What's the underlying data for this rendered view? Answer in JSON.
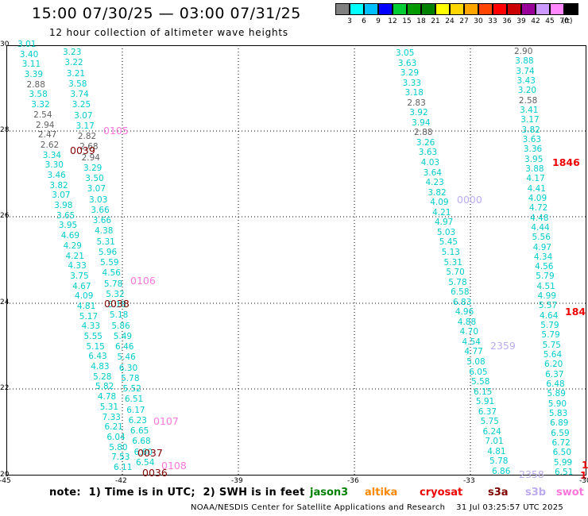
{
  "title": "15:00 07/30/25 — 03:00 07/31/25",
  "subtitle": "12 hour collection of altimeter wave heights",
  "scale": {
    "unit": "(ft)",
    "bins": [
      {
        "label": "3",
        "color": "#808080"
      },
      {
        "label": "6",
        "color": "#00ffff"
      },
      {
        "label": "9",
        "color": "#00bfff"
      },
      {
        "label": "12",
        "color": "#0000ff"
      },
      {
        "label": "15",
        "color": "#00cc33"
      },
      {
        "label": "18",
        "color": "#009900"
      },
      {
        "label": "21",
        "color": "#008000"
      },
      {
        "label": "24",
        "color": "#ffff00"
      },
      {
        "label": "27",
        "color": "#ffd700"
      },
      {
        "label": "30",
        "color": "#ffa500"
      },
      {
        "label": "33",
        "color": "#ff4500"
      },
      {
        "label": "36",
        "color": "#ff0000"
      },
      {
        "label": "39",
        "color": "#cc0000"
      },
      {
        "label": "42",
        "color": "#990099"
      },
      {
        "label": "45",
        "color": "#cc99ff"
      },
      {
        "label": "70",
        "color": "#ff88ff"
      },
      {
        "label": "",
        "color": "#000000"
      }
    ]
  },
  "axes": {
    "lon": [
      "-45",
      "-42",
      "-39",
      "-36",
      "-33",
      "-30"
    ],
    "lat": [
      "30",
      "28",
      "26",
      "24",
      "22",
      "20"
    ]
  },
  "colors": {
    "cyan": "#00cccc",
    "gray": "#606060",
    "pink": "#ff77dd",
    "maroon": "#800000",
    "red": "#ee0000",
    "lavender": "#bbaaee"
  },
  "track_a": [
    {
      "v": "3.01",
      "c": "cyan"
    },
    {
      "v": "3.40",
      "c": "cyan"
    },
    {
      "v": "3.11",
      "c": "cyan"
    },
    {
      "v": "3.39",
      "c": "cyan"
    },
    {
      "v": "2.88",
      "c": "gray"
    },
    {
      "v": "3.58",
      "c": "cyan"
    },
    {
      "v": "3.32",
      "c": "cyan"
    },
    {
      "v": "2.54",
      "c": "gray"
    },
    {
      "v": "2.94",
      "c": "gray"
    },
    {
      "v": "2.47",
      "c": "gray"
    },
    {
      "v": "2.62",
      "c": "gray"
    },
    {
      "v": "3.34",
      "c": "cyan"
    },
    {
      "v": "3.30",
      "c": "cyan"
    },
    {
      "v": "3.46",
      "c": "cyan"
    },
    {
      "v": "3.82",
      "c": "cyan"
    },
    {
      "v": "3.07",
      "c": "cyan"
    },
    {
      "v": "3.98",
      "c": "cyan"
    },
    {
      "v": "3.65",
      "c": "cyan"
    },
    {
      "v": "3.95",
      "c": "cyan"
    },
    {
      "v": "4.69",
      "c": "cyan"
    },
    {
      "v": "4.29",
      "c": "cyan"
    },
    {
      "v": "4.21",
      "c": "cyan"
    },
    {
      "v": "4.33",
      "c": "cyan"
    },
    {
      "v": "3.75",
      "c": "cyan"
    },
    {
      "v": "4.67",
      "c": "cyan"
    },
    {
      "v": "4.09",
      "c": "cyan"
    },
    {
      "v": "4.81",
      "c": "cyan"
    },
    {
      "v": "5.17",
      "c": "cyan"
    },
    {
      "v": "4.33",
      "c": "cyan"
    },
    {
      "v": "5.55",
      "c": "cyan"
    },
    {
      "v": "5.15",
      "c": "cyan"
    },
    {
      "v": "6.43",
      "c": "cyan"
    },
    {
      "v": "4.83",
      "c": "cyan"
    },
    {
      "v": "5.28",
      "c": "cyan"
    },
    {
      "v": "5.82",
      "c": "cyan"
    },
    {
      "v": "4.78",
      "c": "cyan"
    },
    {
      "v": "5.31",
      "c": "cyan"
    },
    {
      "v": "7.33",
      "c": "cyan"
    },
    {
      "v": "6.21",
      "c": "cyan"
    },
    {
      "v": "6.04",
      "c": "cyan"
    },
    {
      "v": "5.80",
      "c": "cyan"
    },
    {
      "v": "7.53",
      "c": "cyan"
    },
    {
      "v": "6.11",
      "c": "cyan"
    }
  ],
  "track_b": [
    {
      "v": "3.23",
      "c": "cyan"
    },
    {
      "v": "3.22",
      "c": "cyan"
    },
    {
      "v": "3.21",
      "c": "cyan"
    },
    {
      "v": "3.58",
      "c": "cyan"
    },
    {
      "v": "3.74",
      "c": "cyan"
    },
    {
      "v": "3.25",
      "c": "cyan"
    },
    {
      "v": "3.07",
      "c": "cyan"
    },
    {
      "v": "3.17",
      "c": "cyan"
    },
    {
      "v": "2.82",
      "c": "gray"
    },
    {
      "v": "2.68",
      "c": "gray"
    },
    {
      "v": "2.94",
      "c": "gray"
    },
    {
      "v": "3.29",
      "c": "cyan"
    },
    {
      "v": "3.50",
      "c": "cyan"
    },
    {
      "v": "3.07",
      "c": "cyan"
    },
    {
      "v": "3.03",
      "c": "cyan"
    },
    {
      "v": "3.66",
      "c": "cyan"
    },
    {
      "v": "3.66",
      "c": "cyan"
    },
    {
      "v": "4.38",
      "c": "cyan"
    },
    {
      "v": "5.31",
      "c": "cyan"
    },
    {
      "v": "5.96",
      "c": "cyan"
    },
    {
      "v": "5.59",
      "c": "cyan"
    },
    {
      "v": "4.56",
      "c": "cyan"
    },
    {
      "v": "5.78",
      "c": "cyan"
    },
    {
      "v": "5.32",
      "c": "cyan"
    },
    {
      "v": "5.18",
      "c": "cyan"
    },
    {
      "v": "5.18",
      "c": "cyan"
    },
    {
      "v": "5.86",
      "c": "cyan"
    },
    {
      "v": "5.49",
      "c": "cyan"
    },
    {
      "v": "6.46",
      "c": "cyan"
    },
    {
      "v": "5.46",
      "c": "cyan"
    },
    {
      "v": "6.30",
      "c": "cyan"
    },
    {
      "v": "5.78",
      "c": "cyan"
    },
    {
      "v": "5.52",
      "c": "cyan"
    },
    {
      "v": "6.51",
      "c": "cyan"
    },
    {
      "v": "6.17",
      "c": "cyan"
    },
    {
      "v": "6.23",
      "c": "cyan"
    },
    {
      "v": "6.65",
      "c": "cyan"
    },
    {
      "v": "6.68",
      "c": "cyan"
    },
    {
      "v": "6.60",
      "c": "cyan"
    },
    {
      "v": "6.54",
      "c": "cyan"
    }
  ],
  "track_c": [
    {
      "v": "3.05",
      "c": "cyan"
    },
    {
      "v": "3.63",
      "c": "cyan"
    },
    {
      "v": "3.29",
      "c": "cyan"
    },
    {
      "v": "3.33",
      "c": "cyan"
    },
    {
      "v": "3.18",
      "c": "cyan"
    },
    {
      "v": "2.83",
      "c": "gray"
    },
    {
      "v": "3.92",
      "c": "cyan"
    },
    {
      "v": "3.94",
      "c": "cyan"
    },
    {
      "v": "2.88",
      "c": "gray"
    },
    {
      "v": "3.26",
      "c": "cyan"
    },
    {
      "v": "3.63",
      "c": "cyan"
    },
    {
      "v": "4.03",
      "c": "cyan"
    },
    {
      "v": "3.64",
      "c": "cyan"
    },
    {
      "v": "4.23",
      "c": "cyan"
    },
    {
      "v": "3.82",
      "c": "cyan"
    },
    {
      "v": "4.09",
      "c": "cyan"
    },
    {
      "v": "4.21",
      "c": "cyan"
    },
    {
      "v": "4.97",
      "c": "cyan"
    },
    {
      "v": "5.03",
      "c": "cyan"
    },
    {
      "v": "5.45",
      "c": "cyan"
    },
    {
      "v": "5.13",
      "c": "cyan"
    },
    {
      "v": "5.31",
      "c": "cyan"
    },
    {
      "v": "5.70",
      "c": "cyan"
    },
    {
      "v": "5.78",
      "c": "cyan"
    },
    {
      "v": "6.58",
      "c": "cyan"
    },
    {
      "v": "6.83",
      "c": "cyan"
    },
    {
      "v": "4.96",
      "c": "cyan"
    },
    {
      "v": "4.88",
      "c": "cyan"
    },
    {
      "v": "4.70",
      "c": "cyan"
    },
    {
      "v": "4.54",
      "c": "cyan"
    },
    {
      "v": "4.77",
      "c": "cyan"
    },
    {
      "v": "5.08",
      "c": "cyan"
    },
    {
      "v": "6.05",
      "c": "cyan"
    },
    {
      "v": "5.58",
      "c": "cyan"
    },
    {
      "v": "6.15",
      "c": "cyan"
    },
    {
      "v": "5.91",
      "c": "cyan"
    },
    {
      "v": "6.37",
      "c": "cyan"
    },
    {
      "v": "5.75",
      "c": "cyan"
    },
    {
      "v": "6.24",
      "c": "cyan"
    },
    {
      "v": "7.01",
      "c": "cyan"
    },
    {
      "v": "4.81",
      "c": "cyan"
    },
    {
      "v": "5.78",
      "c": "cyan"
    },
    {
      "v": "6.86",
      "c": "cyan"
    }
  ],
  "track_d": [
    {
      "v": "2.90",
      "c": "gray"
    },
    {
      "v": "3.88",
      "c": "cyan"
    },
    {
      "v": "3.74",
      "c": "cyan"
    },
    {
      "v": "3.43",
      "c": "cyan"
    },
    {
      "v": "3.20",
      "c": "cyan"
    },
    {
      "v": "2.58",
      "c": "gray"
    },
    {
      "v": "3.41",
      "c": "cyan"
    },
    {
      "v": "3.17",
      "c": "cyan"
    },
    {
      "v": "3.82",
      "c": "cyan"
    },
    {
      "v": "3.63",
      "c": "cyan"
    },
    {
      "v": "3.36",
      "c": "cyan"
    },
    {
      "v": "3.95",
      "c": "cyan"
    },
    {
      "v": "3.88",
      "c": "cyan"
    },
    {
      "v": "4.17",
      "c": "cyan"
    },
    {
      "v": "4.41",
      "c": "cyan"
    },
    {
      "v": "4.09",
      "c": "cyan"
    },
    {
      "v": "4.72",
      "c": "cyan"
    },
    {
      "v": "4.48",
      "c": "cyan"
    },
    {
      "v": "4.44",
      "c": "cyan"
    },
    {
      "v": "5.56",
      "c": "cyan"
    },
    {
      "v": "4.97",
      "c": "cyan"
    },
    {
      "v": "4.34",
      "c": "cyan"
    },
    {
      "v": "4.56",
      "c": "cyan"
    },
    {
      "v": "5.79",
      "c": "cyan"
    },
    {
      "v": "4.51",
      "c": "cyan"
    },
    {
      "v": "4.99",
      "c": "cyan"
    },
    {
      "v": "5.57",
      "c": "cyan"
    },
    {
      "v": "4.64",
      "c": "cyan"
    },
    {
      "v": "5.79",
      "c": "cyan"
    },
    {
      "v": "5.79",
      "c": "cyan"
    },
    {
      "v": "5.75",
      "c": "cyan"
    },
    {
      "v": "5.64",
      "c": "cyan"
    },
    {
      "v": "6.20",
      "c": "cyan"
    },
    {
      "v": "6.37",
      "c": "cyan"
    },
    {
      "v": "6.48",
      "c": "cyan"
    },
    {
      "v": "5.89",
      "c": "cyan"
    },
    {
      "v": "5.90",
      "c": "cyan"
    },
    {
      "v": "5.83",
      "c": "cyan"
    },
    {
      "v": "6.89",
      "c": "cyan"
    },
    {
      "v": "6.59",
      "c": "cyan"
    },
    {
      "v": "6.72",
      "c": "cyan"
    },
    {
      "v": "6.50",
      "c": "cyan"
    },
    {
      "v": "5.99",
      "c": "cyan"
    },
    {
      "v": "6.51",
      "c": "cyan"
    }
  ],
  "time_tags": [
    {
      "v": "0105",
      "c": "pink"
    },
    {
      "v": "0039",
      "c": "maroon"
    },
    {
      "v": "0106",
      "c": "pink"
    },
    {
      "v": "0038",
      "c": "maroon"
    },
    {
      "v": "0107",
      "c": "pink"
    },
    {
      "v": "0037",
      "c": "maroon"
    },
    {
      "v": "0108",
      "c": "pink"
    },
    {
      "v": "0036",
      "c": "maroon"
    },
    {
      "v": "0000",
      "c": "lavender"
    },
    {
      "v": "2359",
      "c": "lavender"
    },
    {
      "v": "2358",
      "c": "lavender"
    },
    {
      "v": "1846",
      "c": "red"
    },
    {
      "v": "184",
      "c": "red"
    },
    {
      "v": "1",
      "c": "red"
    },
    {
      "v": "1",
      "c": "red"
    }
  ],
  "note": "note:  1) Time is in UTC;  2) SWH is in feet",
  "legend": [
    {
      "label": "jason3",
      "color": "#008000"
    },
    {
      "label": "altika",
      "color": "#ff8800"
    },
    {
      "label": "cryosat",
      "color": "#ee0000"
    },
    {
      "label": "s3a",
      "color": "#800000"
    },
    {
      "label": "s3b",
      "color": "#bbaaee"
    },
    {
      "label": "swot",
      "color": "#ff77dd"
    }
  ],
  "footer": "NOAA/NESDIS Center for Satellite Applications and Research    31 Jul 03:25:57 UTC 2025"
}
